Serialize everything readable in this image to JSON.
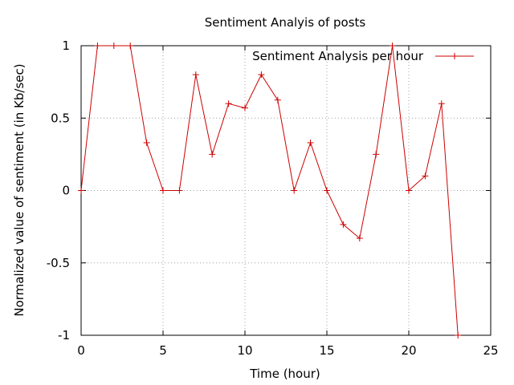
{
  "chart_data": {
    "type": "line",
    "title": "Sentiment Analyis of posts",
    "xlabel": "Time (hour)",
    "ylabel": "Normalized value of sentiment (in Kb/sec)",
    "xlim": [
      0,
      25
    ],
    "ylim": [
      -1,
      1
    ],
    "x_ticks": [
      0,
      5,
      10,
      15,
      20,
      25
    ],
    "y_ticks": [
      -1,
      -0.5,
      0,
      0.5,
      1
    ],
    "x_tick_labels": [
      "0",
      "5",
      "10",
      "15",
      "20",
      "25"
    ],
    "y_tick_labels": [
      "-1",
      "-0.5",
      "0",
      "0.5",
      "1"
    ],
    "grid": true,
    "legend_position": "top-right",
    "series": [
      {
        "name": "Sentiment Analysis per hour",
        "color": "#cc0000",
        "marker": "plus",
        "x": [
          0,
          1,
          2,
          3,
          4,
          5,
          6,
          7,
          8,
          9,
          10,
          11,
          12,
          13,
          14,
          15,
          16,
          17,
          18,
          19,
          20,
          21,
          22,
          23
        ],
        "y": [
          0,
          1,
          1,
          1,
          0.33,
          0,
          0,
          0.8,
          0.25,
          0.6,
          0.57,
          0.8,
          0.625,
          0,
          0.33,
          0,
          -0.235,
          -0.33,
          0.25,
          1,
          0,
          0.1,
          0.6,
          -1
        ]
      }
    ]
  }
}
